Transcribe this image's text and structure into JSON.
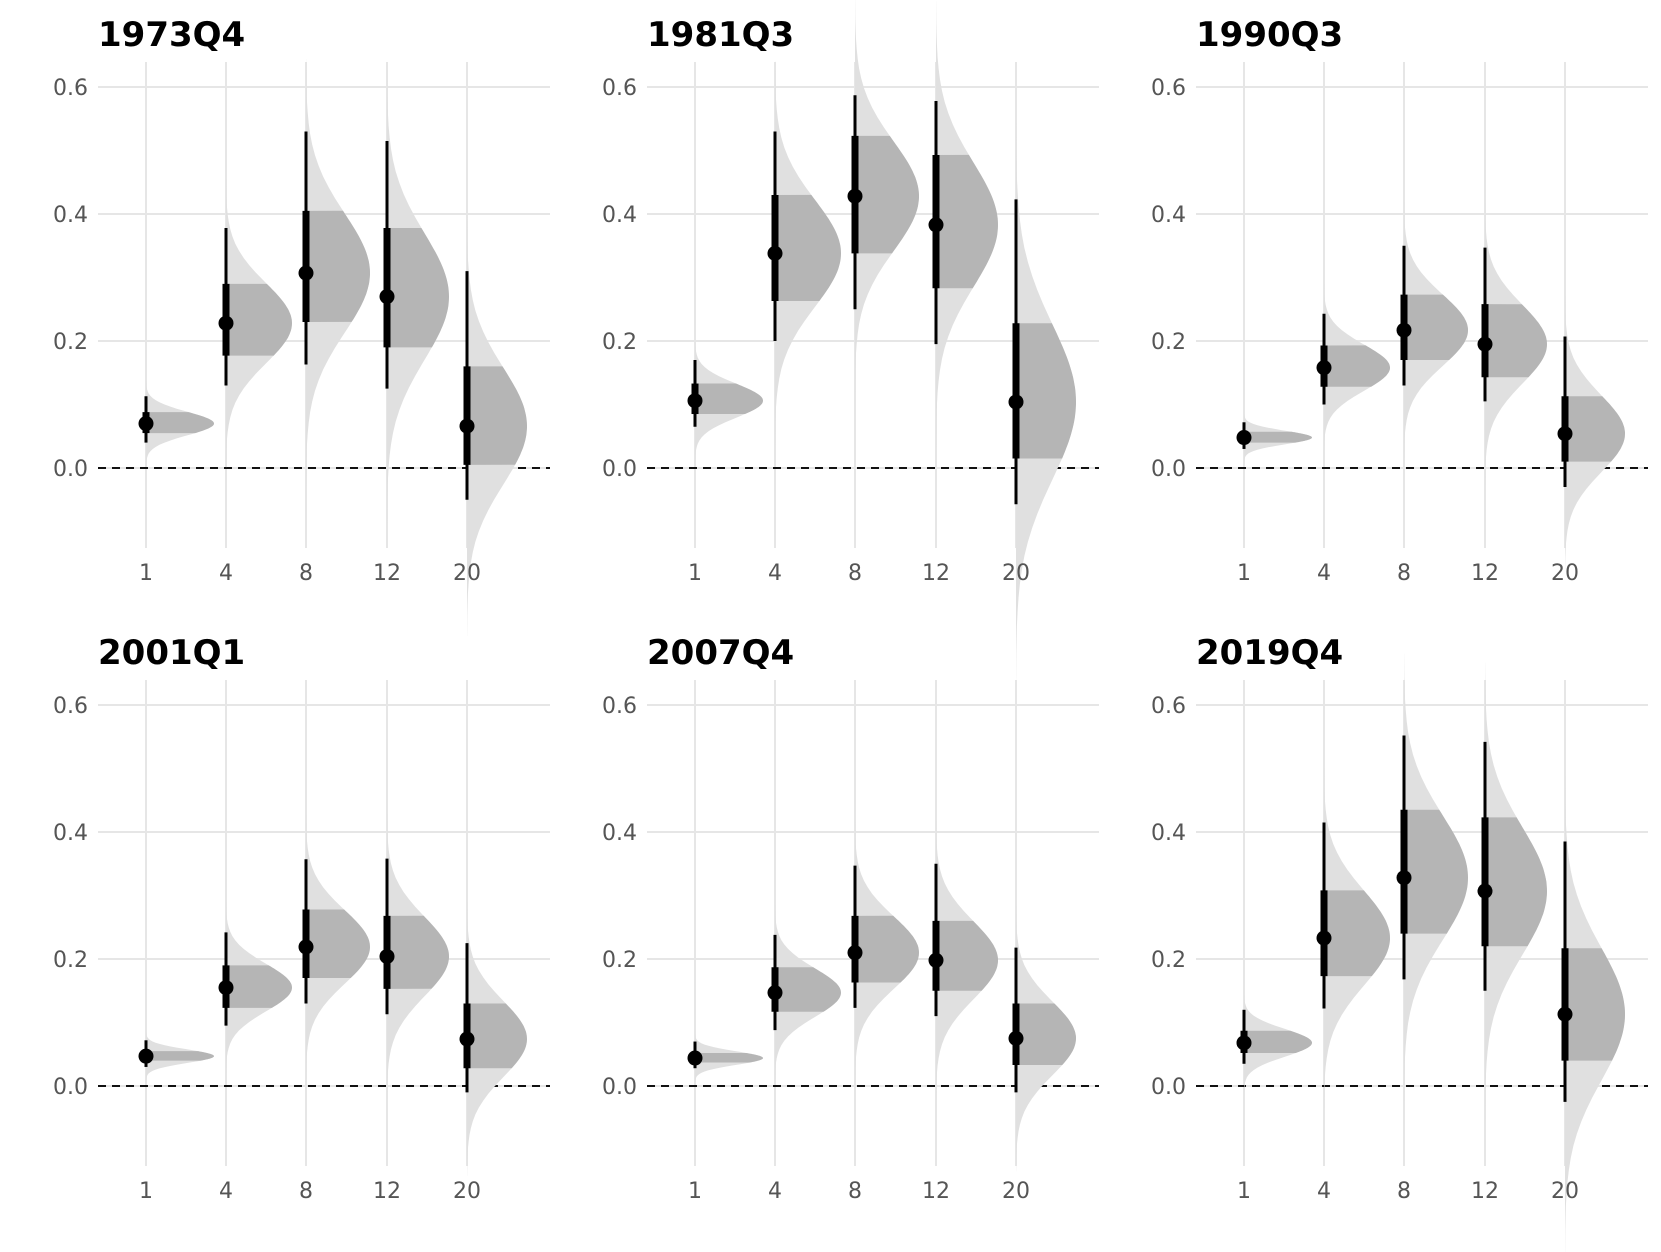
{
  "chart_data": [
    {
      "type": "interval",
      "title": "1973Q4",
      "categories": [
        "1",
        "4",
        "8",
        "12",
        "20"
      ],
      "y_ticks": [
        "0.0",
        "0.2",
        "0.4",
        "0.6"
      ],
      "ylim": [
        -0.17,
        0.63
      ],
      "reference_line": 0.0,
      "median": [
        0.07,
        0.228,
        0.307,
        0.27,
        0.066
      ],
      "interval_66": [
        [
          0.055,
          0.088
        ],
        [
          0.177,
          0.29
        ],
        [
          0.23,
          0.405
        ],
        [
          0.19,
          0.378
        ],
        [
          0.005,
          0.16
        ]
      ],
      "interval_95": [
        [
          0.04,
          0.113
        ],
        [
          0.13,
          0.378
        ],
        [
          0.163,
          0.53
        ],
        [
          0.125,
          0.515
        ],
        [
          -0.05,
          0.31
        ]
      ]
    },
    {
      "type": "interval",
      "title": "1981Q3",
      "categories": [
        "1",
        "4",
        "8",
        "12",
        "20"
      ],
      "y_ticks": [
        "0.0",
        "0.2",
        "0.4",
        "0.6"
      ],
      "ylim": [
        -0.17,
        0.63
      ],
      "reference_line": 0.0,
      "median": [
        0.106,
        0.338,
        0.428,
        0.383,
        0.104
      ],
      "interval_66": [
        [
          0.085,
          0.133
        ],
        [
          0.263,
          0.43
        ],
        [
          0.338,
          0.523
        ],
        [
          0.283,
          0.493
        ],
        [
          0.015,
          0.228
        ]
      ],
      "interval_95": [
        [
          0.065,
          0.17
        ],
        [
          0.2,
          0.53
        ],
        [
          0.25,
          0.587
        ],
        [
          0.195,
          0.578
        ],
        [
          -0.057,
          0.423
        ]
      ]
    },
    {
      "type": "interval",
      "title": "1990Q3",
      "categories": [
        "1",
        "4",
        "8",
        "12",
        "20"
      ],
      "y_ticks": [
        "0.0",
        "0.2",
        "0.4",
        "0.6"
      ],
      "ylim": [
        -0.17,
        0.63
      ],
      "reference_line": 0.0,
      "median": [
        0.048,
        0.158,
        0.217,
        0.195,
        0.054
      ],
      "interval_66": [
        [
          0.04,
          0.057
        ],
        [
          0.128,
          0.193
        ],
        [
          0.17,
          0.273
        ],
        [
          0.143,
          0.258
        ],
        [
          0.01,
          0.113
        ]
      ],
      "interval_95": [
        [
          0.03,
          0.072
        ],
        [
          0.1,
          0.243
        ],
        [
          0.13,
          0.35
        ],
        [
          0.105,
          0.347
        ],
        [
          -0.03,
          0.207
        ]
      ]
    },
    {
      "type": "interval",
      "title": "2001Q1",
      "categories": [
        "1",
        "4",
        "8",
        "12",
        "20"
      ],
      "y_ticks": [
        "0.0",
        "0.2",
        "0.4",
        "0.6"
      ],
      "ylim": [
        -0.17,
        0.63
      ],
      "reference_line": 0.0,
      "median": [
        0.047,
        0.155,
        0.219,
        0.204,
        0.074
      ],
      "interval_66": [
        [
          0.04,
          0.055
        ],
        [
          0.123,
          0.19
        ],
        [
          0.17,
          0.278
        ],
        [
          0.153,
          0.268
        ],
        [
          0.028,
          0.13
        ]
      ],
      "interval_95": [
        [
          0.03,
          0.072
        ],
        [
          0.095,
          0.242
        ],
        [
          0.13,
          0.357
        ],
        [
          0.113,
          0.358
        ],
        [
          -0.01,
          0.225
        ]
      ]
    },
    {
      "type": "interval",
      "title": "2007Q4",
      "categories": [
        "1",
        "4",
        "8",
        "12",
        "20"
      ],
      "y_ticks": [
        "0.0",
        "0.2",
        "0.4",
        "0.6"
      ],
      "ylim": [
        -0.17,
        0.63
      ],
      "reference_line": 0.0,
      "median": [
        0.044,
        0.147,
        0.21,
        0.198,
        0.075
      ],
      "interval_66": [
        [
          0.037,
          0.052
        ],
        [
          0.117,
          0.187
        ],
        [
          0.163,
          0.268
        ],
        [
          0.15,
          0.26
        ],
        [
          0.033,
          0.13
        ]
      ],
      "interval_95": [
        [
          0.028,
          0.07
        ],
        [
          0.088,
          0.238
        ],
        [
          0.123,
          0.347
        ],
        [
          0.11,
          0.35
        ],
        [
          -0.01,
          0.218
        ]
      ]
    },
    {
      "type": "interval",
      "title": "2019Q4",
      "categories": [
        "1",
        "4",
        "8",
        "12",
        "20"
      ],
      "y_ticks": [
        "0.0",
        "0.2",
        "0.4",
        "0.6"
      ],
      "ylim": [
        -0.17,
        0.63
      ],
      "reference_line": 0.0,
      "median": [
        0.068,
        0.233,
        0.328,
        0.307,
        0.113
      ],
      "interval_66": [
        [
          0.052,
          0.087
        ],
        [
          0.173,
          0.308
        ],
        [
          0.24,
          0.435
        ],
        [
          0.22,
          0.423
        ],
        [
          0.04,
          0.217
        ]
      ],
      "interval_95": [
        [
          0.035,
          0.12
        ],
        [
          0.122,
          0.415
        ],
        [
          0.168,
          0.552
        ],
        [
          0.15,
          0.542
        ],
        [
          -0.025,
          0.385
        ]
      ]
    }
  ]
}
